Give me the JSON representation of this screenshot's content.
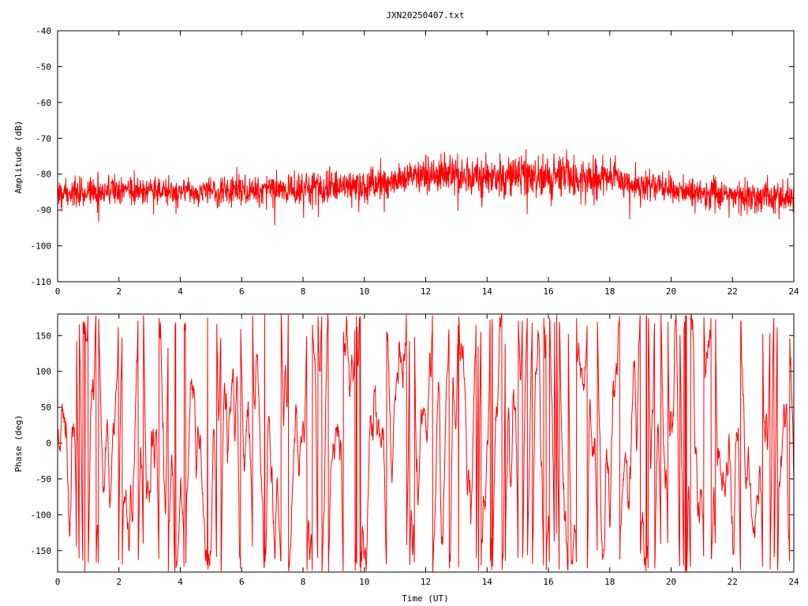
{
  "chart_data": [
    {
      "type": "line",
      "title": "JXN20250407.txt",
      "xlabel": "",
      "ylabel": "Amplitude (dB)",
      "xlim": [
        0,
        24
      ],
      "ylim": [
        -110,
        -40
      ],
      "x_ticks": [
        "0",
        "2",
        "4",
        "6",
        "8",
        "10",
        "12",
        "14",
        "16",
        "18",
        "20",
        "22",
        "24"
      ],
      "y_ticks": [
        "-40",
        "-50",
        "-60",
        "-70",
        "-80",
        "-90",
        "-100",
        "-110"
      ],
      "series_color": "#ff0000",
      "trend": {
        "x": [
          0,
          1,
          2,
          3,
          4,
          5,
          6,
          7,
          8,
          9,
          10,
          11,
          11.5,
          12,
          13,
          14,
          15,
          16,
          17,
          18,
          19,
          20,
          21,
          22,
          23,
          24
        ],
        "mean": [
          -85.5,
          -85,
          -84.5,
          -84.5,
          -85,
          -85,
          -84.5,
          -84,
          -84,
          -83.5,
          -83,
          -82,
          -80.5,
          -80,
          -80,
          -80.5,
          -81,
          -81,
          -81,
          -81.5,
          -83,
          -84,
          -85,
          -86,
          -86.5,
          -87
        ],
        "spread": [
          3,
          3,
          3,
          3,
          3,
          3,
          3.5,
          3.5,
          3.5,
          3.5,
          3.5,
          4,
          4,
          4,
          4.5,
          4.5,
          4.5,
          4.5,
          4.5,
          4,
          3.5,
          3.5,
          3.5,
          3.5,
          3.5,
          3.5
        ]
      }
    },
    {
      "type": "line",
      "title": "",
      "xlabel": "Time (UT)",
      "ylabel": "Phase (deg)",
      "xlim": [
        0,
        24
      ],
      "ylim": [
        -180,
        180
      ],
      "x_ticks": [
        "0",
        "2",
        "4",
        "6",
        "8",
        "10",
        "12",
        "14",
        "16",
        "18",
        "20",
        "22",
        "24"
      ],
      "y_ticks": [
        "150",
        "100",
        "50",
        "0",
        "-50",
        "-100",
        "-150"
      ],
      "series_color": "#ff0000",
      "phase_wraps_between": [
        -180,
        180
      ]
    }
  ]
}
